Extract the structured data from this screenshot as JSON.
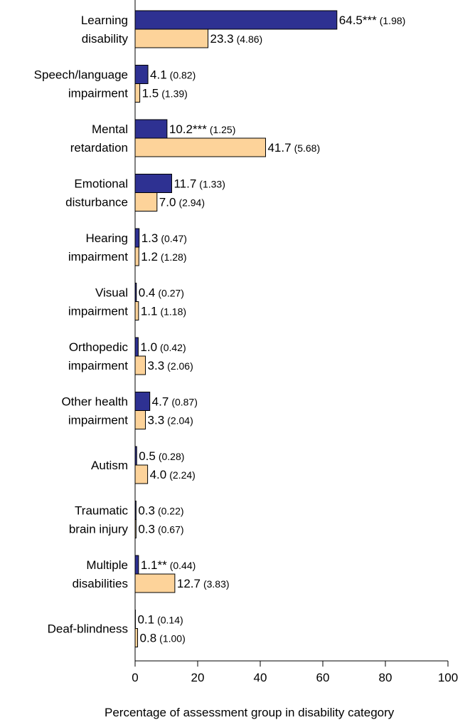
{
  "chart_data": {
    "type": "bar",
    "orientation": "horizontal",
    "x_label": "Percentage of assessment group in disability category",
    "categories": [
      [
        "Learning",
        "disability"
      ],
      [
        "Speech/language",
        "impairment"
      ],
      [
        "Mental",
        "retardation"
      ],
      [
        "Emotional",
        "disturbance"
      ],
      [
        "Hearing",
        "impairment"
      ],
      [
        "Visual",
        "impairment"
      ],
      [
        "Orthopedic",
        "impairment"
      ],
      [
        "Other health",
        "impairment"
      ],
      [
        "Autism"
      ],
      [
        "Traumatic",
        "brain injury"
      ],
      [
        "Multiple",
        "disabilities"
      ],
      [
        "Deaf-blindness"
      ]
    ],
    "series": [
      {
        "color": "#2e3192",
        "values": [
          64.5,
          4.1,
          10.2,
          11.7,
          1.3,
          0.4,
          1.0,
          4.7,
          0.5,
          0.3,
          1.1,
          0.1
        ],
        "value_labels": [
          "64.5***",
          "4.1",
          "10.2***",
          "11.7",
          "1.3",
          "0.4",
          "1.0",
          "4.7",
          "0.5",
          "0.3",
          "1.1**",
          "0.1"
        ],
        "error_labels": [
          "(1.98)",
          "(0.82)",
          "(1.25)",
          "(1.33)",
          "(0.47)",
          "(0.27)",
          "(0.42)",
          "(0.87)",
          "(0.28)",
          "(0.22)",
          "(0.44)",
          "(0.14)"
        ]
      },
      {
        "color": "#fdd39a",
        "values": [
          23.3,
          1.5,
          41.7,
          7.0,
          1.2,
          1.1,
          3.3,
          3.3,
          4.0,
          0.3,
          12.7,
          0.8
        ],
        "value_labels": [
          "23.3",
          "1.5",
          "41.7",
          "7.0",
          "1.2",
          "1.1",
          "3.3",
          "3.3",
          "4.0",
          "0.3",
          "12.7",
          "0.8"
        ],
        "error_labels": [
          "(4.86)",
          "(1.39)",
          "(5.68)",
          "(2.94)",
          "(1.28)",
          "(1.18)",
          "(2.06)",
          "(2.04)",
          "(2.24)",
          "(0.67)",
          "(3.83)",
          "(1.00)"
        ]
      }
    ],
    "xlim": [
      0,
      100
    ],
    "xticks": [
      0,
      20,
      40,
      60,
      80,
      100
    ]
  }
}
